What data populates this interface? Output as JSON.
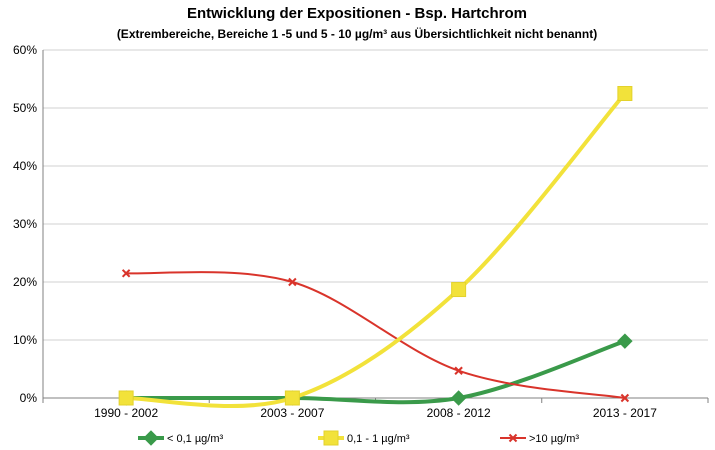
{
  "chart_data": {
    "type": "line",
    "title": "Entwicklung der Expositionen - Bsp. Hartchrom",
    "subtitle": "(Extrembereiche, Bereiche 1 -5 und 5 - 10 µg/m³ aus Übersichtlichkeit nicht benannt)",
    "categories": [
      "1990 - 2002",
      "2003 - 2007",
      "2008 - 2012",
      "2013 - 2017"
    ],
    "ylim": [
      0,
      60
    ],
    "yticks": [
      0,
      10,
      20,
      30,
      40,
      50,
      60
    ],
    "ytick_labels": [
      "0%",
      "10%",
      "20%",
      "30%",
      "40%",
      "50%",
      "60%"
    ],
    "grid": true,
    "legend_position": "bottom",
    "smooth": true,
    "series": [
      {
        "name": "< 0,1 µg/m³",
        "color": "#3a9a4a",
        "marker": "diamond",
        "values": [
          0,
          0,
          0,
          9.8
        ]
      },
      {
        "name": "0,1 - 1 µg/m³",
        "color": "#f2e23a",
        "marker": "square",
        "values": [
          0,
          0,
          18.7,
          52.5
        ]
      },
      {
        "name": ">10 µg/m³",
        "color": "#d9342b",
        "marker": "x",
        "values": [
          21.5,
          20,
          4.7,
          0
        ]
      }
    ]
  }
}
